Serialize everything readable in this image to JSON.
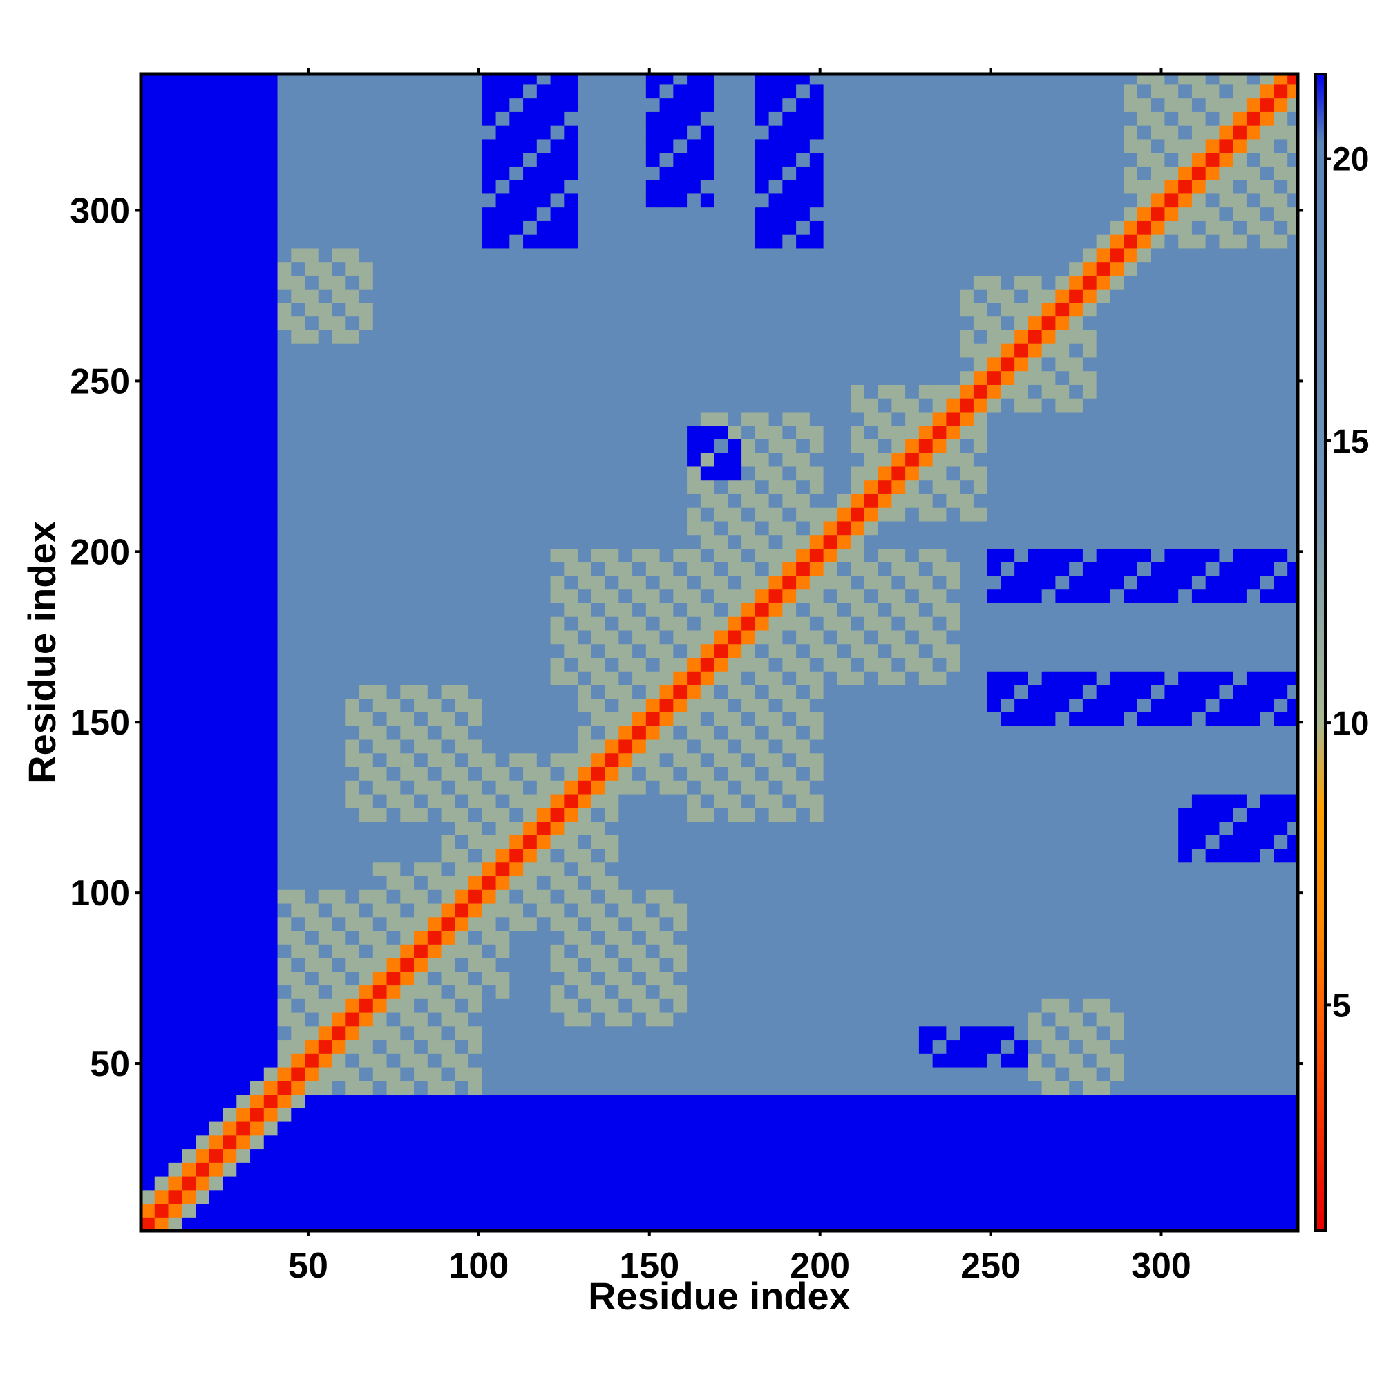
{
  "chart_data": {
    "type": "heatmap",
    "title": "",
    "xlabel": "Residue index",
    "ylabel": "Residue index",
    "xlim": [
      1,
      340
    ],
    "ylim": [
      1,
      340
    ],
    "x_ticks": [
      50,
      100,
      150,
      200,
      250,
      300
    ],
    "x_tick_labels": [
      "50",
      "100",
      "150",
      "200",
      "250",
      "300"
    ],
    "y_ticks": [
      50,
      100,
      150,
      200,
      250,
      300
    ],
    "y_tick_labels": [
      "50",
      "100",
      "150",
      "200",
      "250",
      "300"
    ],
    "colorbar": {
      "range": [
        1,
        21.5
      ],
      "ticks": [
        5,
        10,
        15,
        20
      ],
      "tick_labels": [
        "5",
        "10",
        "15",
        "20"
      ],
      "stops": [
        {
          "value": 1,
          "color": "#e80000"
        },
        {
          "value": 4,
          "color": "#ff4a00"
        },
        {
          "value": 6.5,
          "color": "#ff8a00"
        },
        {
          "value": 8.5,
          "color": "#ffa000"
        },
        {
          "value": 10,
          "color": "#aab890"
        },
        {
          "value": 14,
          "color": "#6f93b8"
        },
        {
          "value": 20.3,
          "color": "#5a85b8"
        },
        {
          "value": 21.5,
          "color": "#0000ee"
        }
      ],
      "max_color": "#0000ee"
    },
    "grid": false,
    "diagonal_value": 2,
    "background_value": 18,
    "unresolved_regions": [
      {
        "x": [
          1,
          42
        ],
        "y": [
          1,
          340
        ],
        "value": 21.5
      },
      {
        "x": [
          1,
          340
        ],
        "y": [
          1,
          40
        ],
        "value": 21.5
      }
    ],
    "contact_features": [
      {
        "x": [
          40,
          70
        ],
        "y": [
          40,
          70
        ],
        "value": 9
      },
      {
        "x": [
          60,
          100
        ],
        "y": [
          40,
          70
        ],
        "value": 9
      },
      {
        "x": [
          70,
          110
        ],
        "y": [
          70,
          110
        ],
        "value": 9
      },
      {
        "x": [
          90,
          130
        ],
        "y": [
          100,
          140
        ],
        "value": 9
      },
      {
        "x": [
          120,
          160
        ],
        "y": [
          60,
          100
        ],
        "value": 9
      },
      {
        "x": [
          130,
          170
        ],
        "y": [
          130,
          170
        ],
        "value": 9
      },
      {
        "x": [
          160,
          200
        ],
        "y": [
          120,
          160
        ],
        "value": 9
      },
      {
        "x": [
          160,
          210
        ],
        "y": [
          160,
          210
        ],
        "value": 9
      },
      {
        "x": [
          200,
          240
        ],
        "y": [
          160,
          200
        ],
        "value": 9
      },
      {
        "x": [
          210,
          250
        ],
        "y": [
          210,
          250
        ],
        "value": 9
      },
      {
        "x": [
          240,
          280
        ],
        "y": [
          240,
          280
        ],
        "value": 9
      },
      {
        "x": [
          260,
          290
        ],
        "y": [
          40,
          70
        ],
        "value": 9
      },
      {
        "x": [
          290,
          340
        ],
        "y": [
          290,
          340
        ],
        "value": 9
      },
      {
        "x": [
          40,
          70
        ],
        "y": [
          265,
          285
        ],
        "value": 9
      }
    ],
    "distal_patches": [
      {
        "x": [
          250,
          340
        ],
        "y": [
          150,
          165
        ],
        "value": 21.5
      },
      {
        "x": [
          250,
          340
        ],
        "y": [
          185,
          200
        ],
        "value": 21.5
      },
      {
        "x": [
          150,
          170
        ],
        "y": [
          300,
          340
        ],
        "value": 21.5
      },
      {
        "x": [
          180,
          200
        ],
        "y": [
          290,
          340
        ],
        "value": 21.5
      },
      {
        "x": [
          100,
          130
        ],
        "y": [
          290,
          340
        ],
        "value": 21.5
      },
      {
        "x": [
          160,
          175
        ],
        "y": [
          220,
          235
        ],
        "value": 21.5
      },
      {
        "x": [
          230,
          260
        ],
        "y": [
          50,
          60
        ],
        "value": 21.5
      },
      {
        "x": [
          305,
          340
        ],
        "y": [
          110,
          130
        ],
        "value": 21.5
      }
    ]
  }
}
